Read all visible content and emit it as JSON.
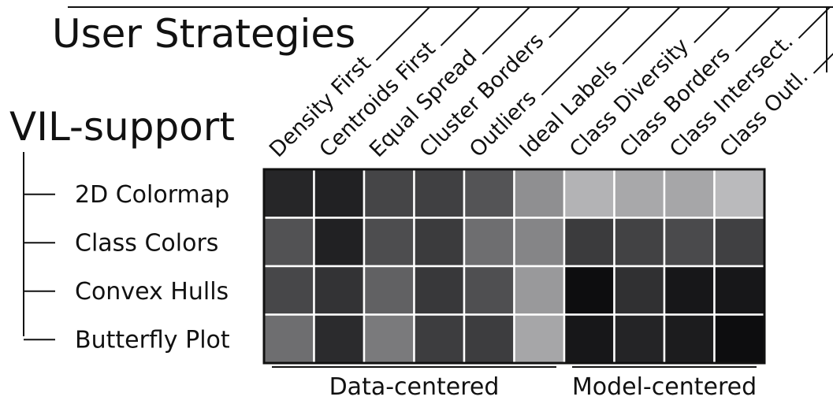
{
  "title_strategies": "User Strategies",
  "title_support": "VIL-support",
  "chart_data": {
    "type": "heatmap",
    "x": [
      "Density First",
      "Centroids First",
      "Equal Spread",
      "Cluster Borders",
      "Outliers",
      "Ideal Labels",
      "Class Diversity",
      "Class Borders",
      "Class Intersect.",
      "Class Outl."
    ],
    "y": [
      "2D Colormap",
      "Class Colors",
      "Convex Hulls",
      "Butterfly Plot"
    ],
    "z": [
      [
        0.15,
        0.13,
        0.27,
        0.25,
        0.33,
        0.56,
        0.7,
        0.66,
        0.65,
        0.73
      ],
      [
        0.32,
        0.13,
        0.3,
        0.23,
        0.43,
        0.52,
        0.23,
        0.26,
        0.29,
        0.25
      ],
      [
        0.28,
        0.2,
        0.38,
        0.22,
        0.31,
        0.6,
        0.05,
        0.19,
        0.09,
        0.09
      ],
      [
        0.43,
        0.17,
        0.48,
        0.24,
        0.24,
        0.65,
        0.09,
        0.14,
        0.11,
        0.05
      ]
    ],
    "column_groups": [
      {
        "label": "Data-centered",
        "columns": [
          "Density First",
          "Centroids First",
          "Equal Spread",
          "Cluster Borders",
          "Outliers",
          "Ideal Labels"
        ]
      },
      {
        "label": "Model-centered",
        "columns": [
          "Class Diversity",
          "Class Borders",
          "Class Intersect.",
          "Class Outl."
        ]
      }
    ],
    "colorscale": "grayscale (dark to light)",
    "legend": "none"
  }
}
